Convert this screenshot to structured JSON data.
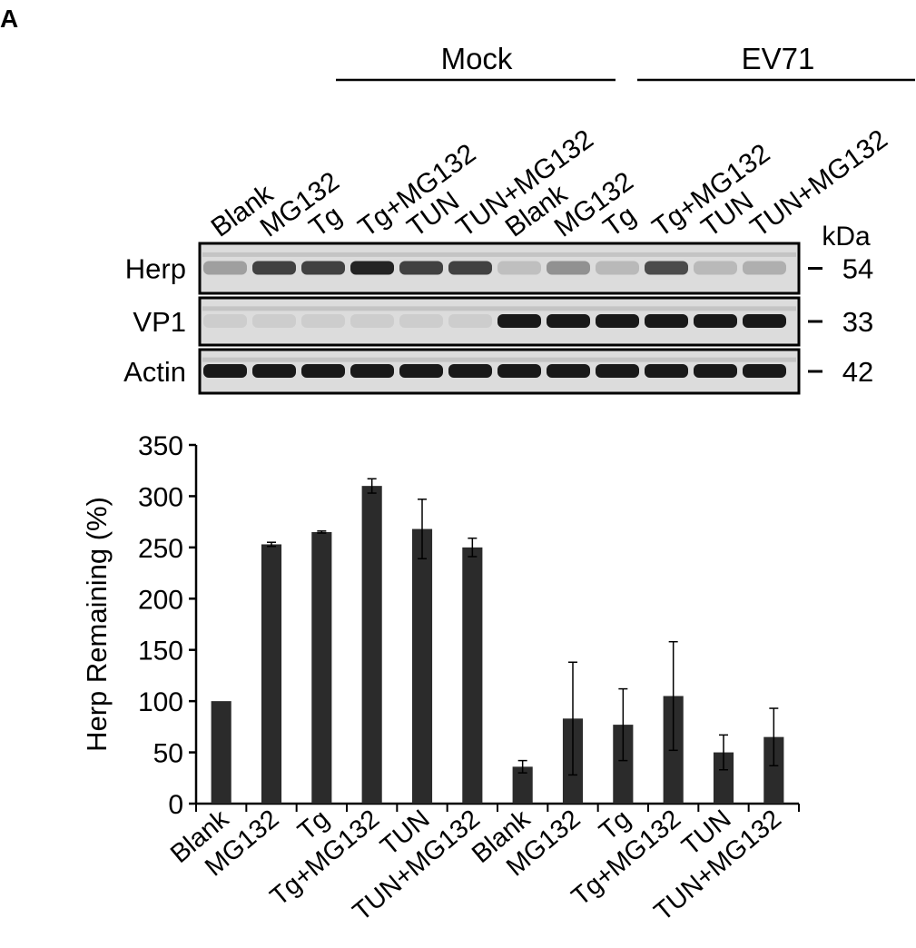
{
  "panel_label": "A",
  "blot": {
    "groups": [
      {
        "label": "Mock"
      },
      {
        "label": "EV71"
      }
    ],
    "lane_labels": [
      "Blank",
      "MG132",
      "Tg",
      "Tg+MG132",
      "TUN",
      "TUN+MG132",
      "Blank",
      "MG132",
      "Tg",
      "Tg+MG132",
      "TUN",
      "TUN+MG132"
    ],
    "unit_label": "kDa",
    "rows": [
      {
        "label": "Herp",
        "marker": "54",
        "band_intensity": [
          0.28,
          0.75,
          0.75,
          0.9,
          0.75,
          0.75,
          0.12,
          0.35,
          0.15,
          0.7,
          0.15,
          0.2
        ]
      },
      {
        "label": "VP1",
        "marker": "33",
        "band_intensity": [
          0.05,
          0.05,
          0.05,
          0.05,
          0.05,
          0.05,
          0.95,
          0.95,
          0.95,
          0.95,
          0.95,
          0.95
        ]
      },
      {
        "label": "Actin",
        "marker": "42",
        "band_intensity": [
          0.95,
          0.95,
          0.95,
          0.95,
          0.95,
          0.95,
          0.95,
          0.95,
          0.95,
          0.95,
          0.95,
          0.95
        ]
      }
    ]
  },
  "chart_data": {
    "type": "bar",
    "categories": [
      "Blank",
      "MG132",
      "Tg",
      "Tg+MG132",
      "TUN",
      "TUN+MG132",
      "Blank",
      "MG132",
      "Tg",
      "Tg+MG132",
      "TUN",
      "TUN+MG132"
    ],
    "values": [
      100,
      253,
      265,
      310,
      268,
      250,
      36,
      83,
      77,
      105,
      50,
      65
    ],
    "errors": [
      0,
      2,
      1,
      7,
      29,
      9,
      6,
      55,
      35,
      53,
      17,
      28
    ],
    "ylabel": "Herp Remaining (%)",
    "xlabel": "",
    "ylim": [
      0,
      350
    ],
    "yticks": [
      "0",
      "50",
      "100",
      "150",
      "200",
      "250",
      "300",
      "350"
    ],
    "bar_color": "#2b2b2b",
    "grid": false,
    "legend": "none"
  }
}
